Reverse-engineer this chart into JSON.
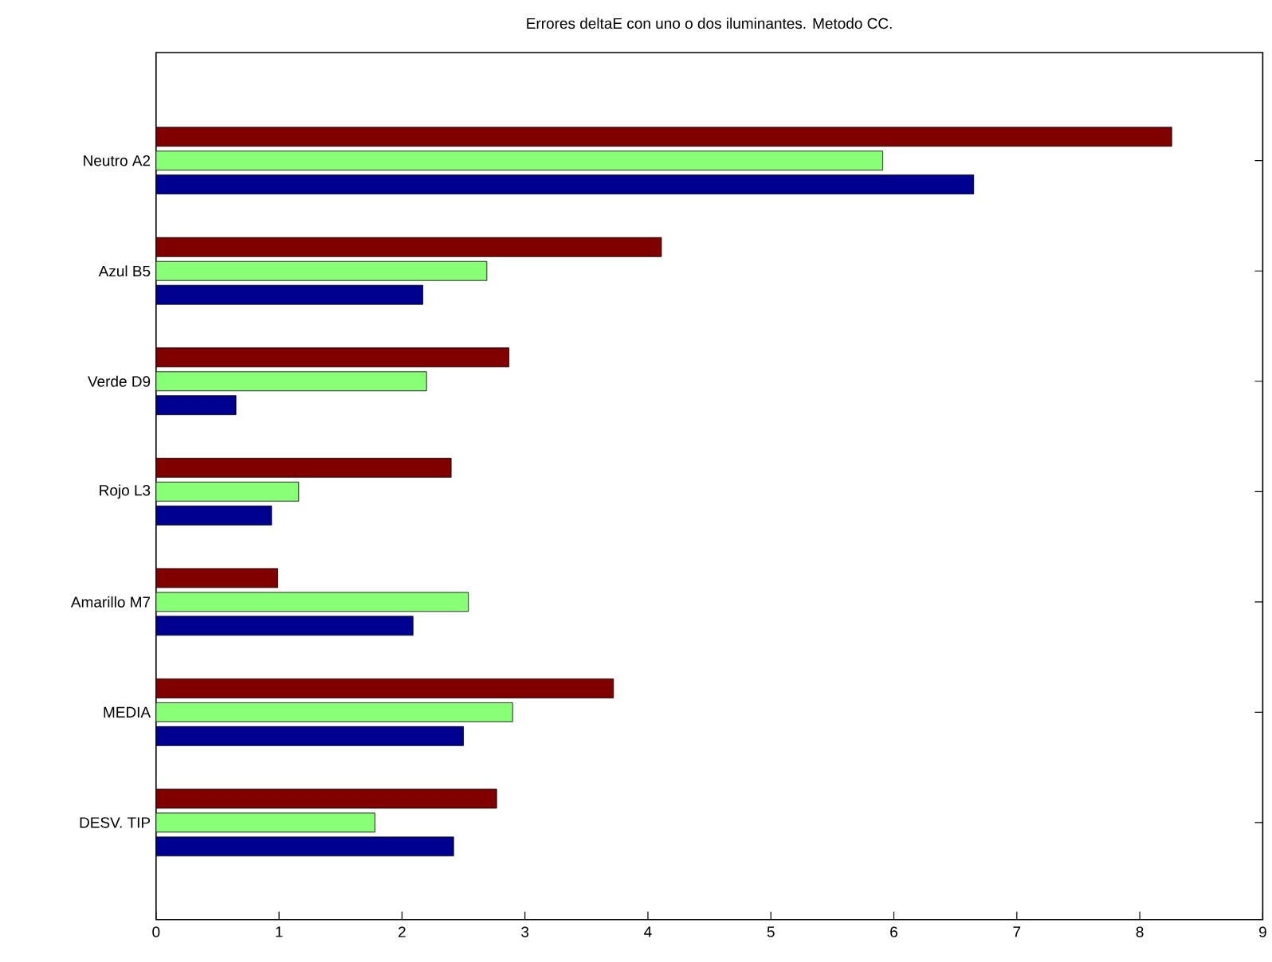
{
  "chart_data": {
    "type": "bar",
    "orientation": "horizontal",
    "title": "Errores deltaE con uno o dos iluminantes. Metodo CC.",
    "categories": [
      "Neutro A2",
      "Azul B5",
      "Verde D9",
      "Rojo L3",
      "Amarillo M7",
      "MEDIA",
      "DESV. TIP"
    ],
    "series": [
      {
        "color": "#800000",
        "values": [
          8.26,
          4.11,
          2.87,
          2.4,
          0.99,
          3.72,
          2.77
        ]
      },
      {
        "color": "#88ff77",
        "values": [
          5.91,
          2.69,
          2.2,
          1.16,
          2.54,
          2.9,
          1.78
        ]
      },
      {
        "color": "#000090",
        "values": [
          6.65,
          2.17,
          0.65,
          0.94,
          2.09,
          2.5,
          2.42
        ]
      }
    ],
    "xlim": [
      0,
      9
    ],
    "xticks": [
      0,
      1,
      2,
      3,
      4,
      5,
      6,
      7,
      8,
      9
    ],
    "grid": false
  }
}
